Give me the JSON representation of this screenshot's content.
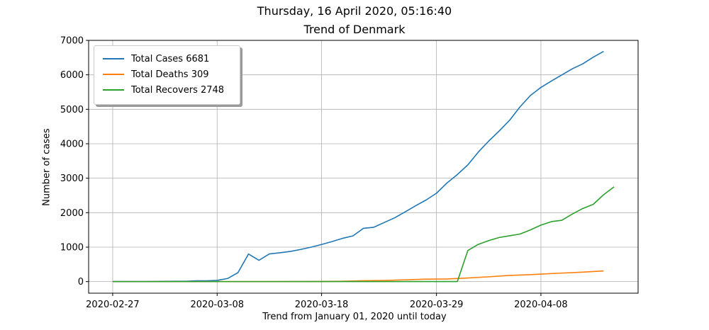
{
  "chart_data": {
    "type": "line",
    "title": "Thursday, 16 April 2020, 05:16:40",
    "subtitle": "Trend of Denmark",
    "xlabel": "Trend from January 01, 2020 until today",
    "ylabel": "Number of cases",
    "ylim": [
      0,
      7000
    ],
    "yticks": [
      0,
      1000,
      2000,
      3000,
      4000,
      5000,
      6000,
      7000
    ],
    "xlim": [
      "2020-02-27",
      "2020-04-15"
    ],
    "xticks": [
      "2020-02-27",
      "2020-03-08",
      "2020-03-18",
      "2020-03-29",
      "2020-04-08"
    ],
    "grid": true,
    "legend_position": "top-left",
    "colors": {
      "cases": "#1f77b4",
      "deaths": "#ff7f0e",
      "recovers": "#2ca02c"
    },
    "series": [
      {
        "name": "Total Cases 6681",
        "color": "#1f77b4",
        "points": [
          [
            "2020-02-27",
            1
          ],
          [
            "2020-02-28",
            1
          ],
          [
            "2020-02-29",
            1
          ],
          [
            "2020-03-01",
            3
          ],
          [
            "2020-03-02",
            4
          ],
          [
            "2020-03-03",
            6
          ],
          [
            "2020-03-04",
            10
          ],
          [
            "2020-03-05",
            10
          ],
          [
            "2020-03-06",
            23
          ],
          [
            "2020-03-07",
            23
          ],
          [
            "2020-03-08",
            35
          ],
          [
            "2020-03-09",
            90
          ],
          [
            "2020-03-10",
            262
          ],
          [
            "2020-03-11",
            800
          ],
          [
            "2020-03-12",
            617
          ],
          [
            "2020-03-13",
            804
          ],
          [
            "2020-03-14",
            836
          ],
          [
            "2020-03-15",
            875
          ],
          [
            "2020-03-16",
            933
          ],
          [
            "2020-03-17",
            1000
          ],
          [
            "2020-03-18",
            1077
          ],
          [
            "2020-03-19",
            1161
          ],
          [
            "2020-03-20",
            1255
          ],
          [
            "2020-03-21",
            1326
          ],
          [
            "2020-03-22",
            1545
          ],
          [
            "2020-03-23",
            1577
          ],
          [
            "2020-03-24",
            1715
          ],
          [
            "2020-03-25",
            1851
          ],
          [
            "2020-03-26",
            2023
          ],
          [
            "2020-03-27",
            2200
          ],
          [
            "2020-03-28",
            2366
          ],
          [
            "2020-03-29",
            2564
          ],
          [
            "2020-03-30",
            2860
          ],
          [
            "2020-03-31",
            3107
          ],
          [
            "2020-04-01",
            3386
          ],
          [
            "2020-04-02",
            3757
          ],
          [
            "2020-04-03",
            4077
          ],
          [
            "2020-04-04",
            4369
          ],
          [
            "2020-04-05",
            4681
          ],
          [
            "2020-04-06",
            5071
          ],
          [
            "2020-04-07",
            5402
          ],
          [
            "2020-04-08",
            5635
          ],
          [
            "2020-04-09",
            5819
          ],
          [
            "2020-04-10",
            5996
          ],
          [
            "2020-04-11",
            6174
          ],
          [
            "2020-04-12",
            6318
          ],
          [
            "2020-04-13",
            6511
          ],
          [
            "2020-04-14",
            6681
          ]
        ]
      },
      {
        "name": "Total Deaths 309",
        "color": "#ff7f0e",
        "points": [
          [
            "2020-02-27",
            0
          ],
          [
            "2020-03-13",
            1
          ],
          [
            "2020-03-18",
            4
          ],
          [
            "2020-03-20",
            9
          ],
          [
            "2020-03-22",
            24
          ],
          [
            "2020-03-24",
            34
          ],
          [
            "2020-03-26",
            52
          ],
          [
            "2020-03-28",
            72
          ],
          [
            "2020-03-30",
            77
          ],
          [
            "2020-04-01",
            104
          ],
          [
            "2020-04-03",
            139
          ],
          [
            "2020-04-05",
            179
          ],
          [
            "2020-04-07",
            203
          ],
          [
            "2020-04-08",
            218
          ],
          [
            "2020-04-10",
            247
          ],
          [
            "2020-04-12",
            273
          ],
          [
            "2020-04-14",
            309
          ]
        ]
      },
      {
        "name": "Total Recovers 2748",
        "color": "#2ca02c",
        "points": [
          [
            "2020-02-27",
            0
          ],
          [
            "2020-03-20",
            1
          ],
          [
            "2020-03-31",
            1
          ],
          [
            "2020-04-01",
            900
          ],
          [
            "2020-04-02",
            1080
          ],
          [
            "2020-04-03",
            1190
          ],
          [
            "2020-04-04",
            1280
          ],
          [
            "2020-04-05",
            1330
          ],
          [
            "2020-04-06",
            1380
          ],
          [
            "2020-04-07",
            1500
          ],
          [
            "2020-04-08",
            1640
          ],
          [
            "2020-04-09",
            1740
          ],
          [
            "2020-04-10",
            1780
          ],
          [
            "2020-04-11",
            1960
          ],
          [
            "2020-04-12",
            2120
          ],
          [
            "2020-04-13",
            2240
          ],
          [
            "2020-04-14",
            2520
          ],
          [
            "2020-04-15",
            2748
          ]
        ]
      }
    ]
  }
}
